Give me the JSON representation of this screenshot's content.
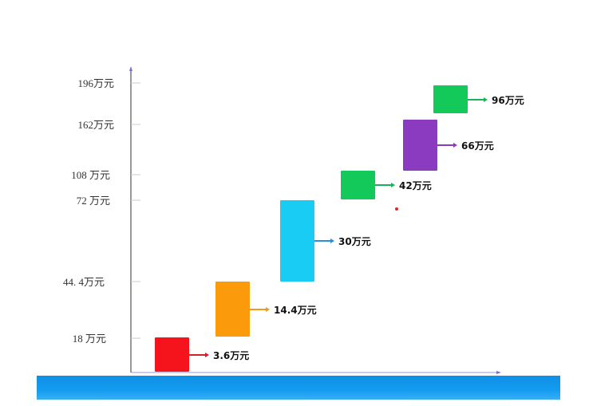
{
  "chart_data": {
    "type": "waterfall",
    "y_ticks": [
      {
        "value": 196,
        "label": "196万元"
      },
      {
        "value": 162,
        "label": "162万元"
      },
      {
        "value": 108,
        "label": "108 万元"
      },
      {
        "value": 72,
        "label": "72 万元"
      },
      {
        "value": 44.4,
        "label": "44. 4万元"
      },
      {
        "value": 18,
        "label": "18 万元"
      }
    ],
    "ylim": [
      0,
      210
    ],
    "grid": false,
    "steps": [
      {
        "start": 0,
        "end": 3.6,
        "value": 3.6,
        "label": "3.6万元",
        "color": "#f5141b",
        "arrow_color": "#d81e2a"
      },
      {
        "start": 3.6,
        "end": 18,
        "value": 14.4,
        "label": "14.4万元",
        "color": "#fb9b0c",
        "arrow_color": "#f29a1d"
      },
      {
        "start": 18,
        "end": 48,
        "value": 30,
        "label": "30万元",
        "color": "#18ccf3",
        "arrow_color": "#2a8fd8"
      },
      {
        "start": 72,
        "end": 114,
        "value": 42,
        "label": "42万元",
        "color": "#12c95a",
        "arrow_color": "#19b35a"
      },
      {
        "start": 114,
        "end": 180,
        "value": 66,
        "label": "66万元",
        "color": "#8a3bbf",
        "arrow_color": "#8a3bbf"
      },
      {
        "start": 180,
        "end": 276,
        "value": 96,
        "label": "96万元",
        "color": "#12c95a",
        "arrow_color": "#19b35a"
      }
    ]
  }
}
